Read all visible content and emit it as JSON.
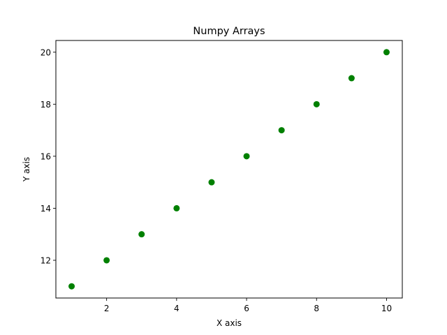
{
  "chart_data": {
    "type": "scatter",
    "title": "Numpy Arrays",
    "xlabel": "X axis",
    "ylabel": "Y axis",
    "x": [
      1,
      2,
      3,
      4,
      5,
      6,
      7,
      8,
      9,
      10
    ],
    "y": [
      11,
      12,
      13,
      14,
      15,
      16,
      17,
      18,
      19,
      20
    ],
    "xlim": [
      0.55,
      10.45
    ],
    "ylim": [
      10.55,
      20.45
    ],
    "xticks": [
      2,
      4,
      6,
      8,
      10
    ],
    "yticks": [
      12,
      14,
      16,
      18,
      20
    ],
    "marker_color": "#008000",
    "grid": false,
    "legend": null
  }
}
